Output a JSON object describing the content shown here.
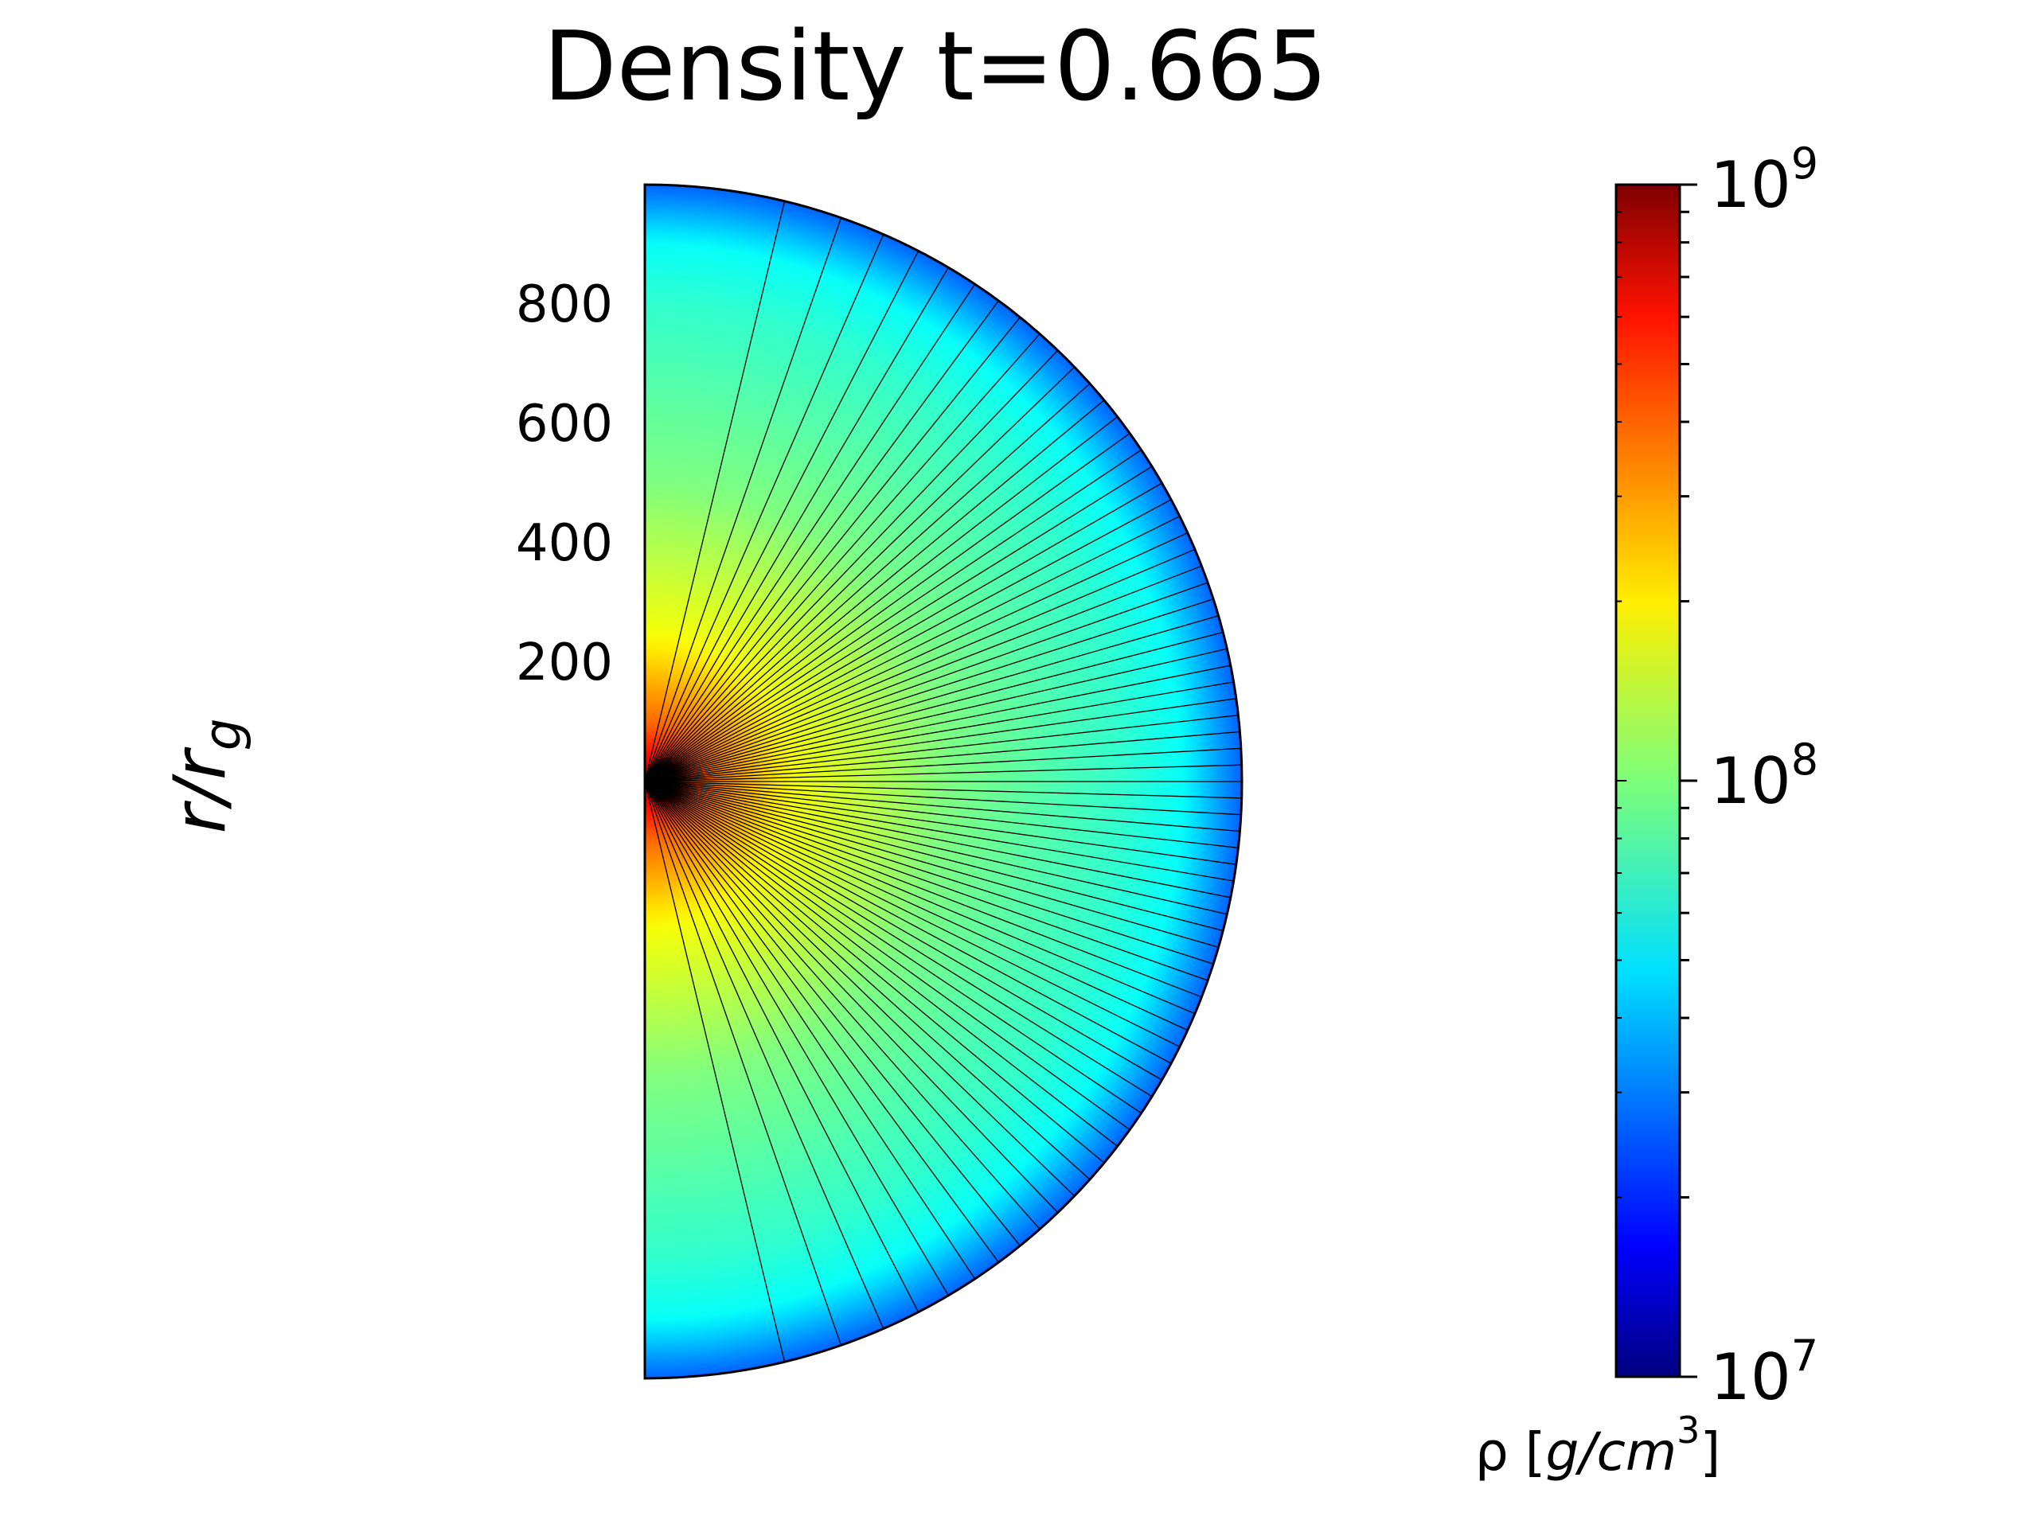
{
  "chart_data": {
    "type": "heatmap",
    "title": "Density t=0.665",
    "ylabel": "r/r",
    "ylabel_subscript": "g",
    "y_ticks": [
      200,
      400,
      600,
      800
    ],
    "r_max": 1000,
    "theta_range_deg": [
      0,
      180
    ],
    "geometry": "half-disk polar (r, theta)",
    "grid": true,
    "colormap": "jet",
    "color_scale": "log",
    "colorbar": {
      "range": [
        10000000,
        1000000000
      ],
      "ticks": [
        {
          "value": 1000000000,
          "base": "10",
          "exp": "9"
        },
        {
          "value": 100000000,
          "base": "10",
          "exp": "8"
        },
        {
          "value": 10000000,
          "base": "10",
          "exp": "7"
        }
      ],
      "label_symbol": "ρ [",
      "label_unit": "g/cm",
      "label_unit_exp": "3",
      "label_close": "]"
    },
    "density_profile": [
      {
        "r": 0,
        "rho": 1000000000
      },
      {
        "r": 30,
        "rho": 600000000
      },
      {
        "r": 100,
        "rho": 350000000
      },
      {
        "r": 250,
        "rho": 170000000
      },
      {
        "r": 500,
        "rho": 100000000
      },
      {
        "r": 800,
        "rho": 70000000
      },
      {
        "r": 1000,
        "rho": 48000000
      }
    ]
  }
}
